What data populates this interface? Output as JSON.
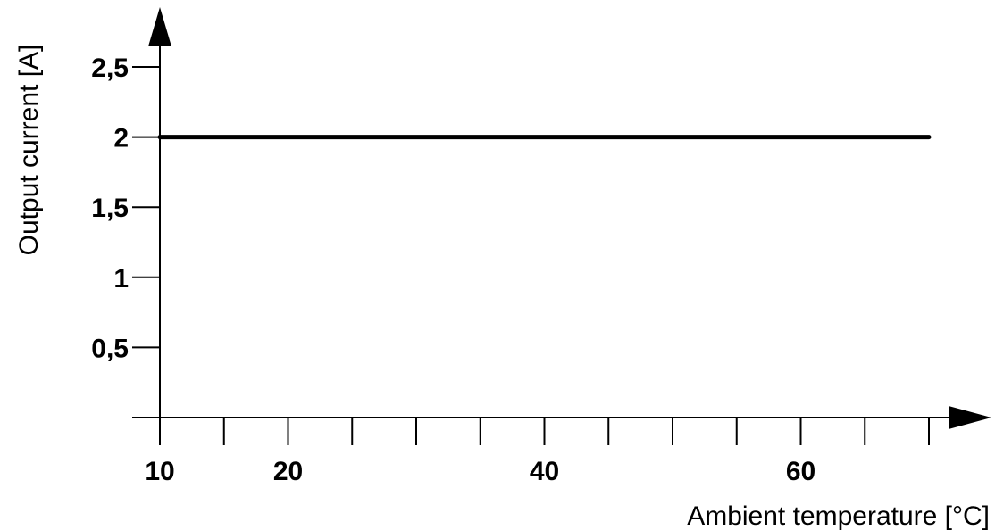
{
  "chart_data": {
    "type": "line",
    "xlabel": "Ambient temperature [°C]",
    "ylabel": "Output current [A]",
    "xlim": [
      10,
      70
    ],
    "ylim": [
      0,
      2.5
    ],
    "x_ticks": [
      10,
      15,
      20,
      25,
      30,
      35,
      40,
      45,
      50,
      55,
      60,
      65,
      70
    ],
    "x_tick_labels": [
      {
        "value": 10,
        "label": "10"
      },
      {
        "value": 20,
        "label": "20"
      },
      {
        "value": 40,
        "label": "40"
      },
      {
        "value": 60,
        "label": "60"
      }
    ],
    "y_ticks": [
      {
        "value": 0.5,
        "label": "0,5"
      },
      {
        "value": 1,
        "label": "1"
      },
      {
        "value": 1.5,
        "label": "1,5"
      },
      {
        "value": 2,
        "label": "2"
      },
      {
        "value": 2.5,
        "label": "2,5"
      }
    ],
    "series": [
      {
        "x": [
          10,
          70
        ],
        "y": [
          2,
          2
        ]
      }
    ],
    "grid": false,
    "legend": "none"
  }
}
